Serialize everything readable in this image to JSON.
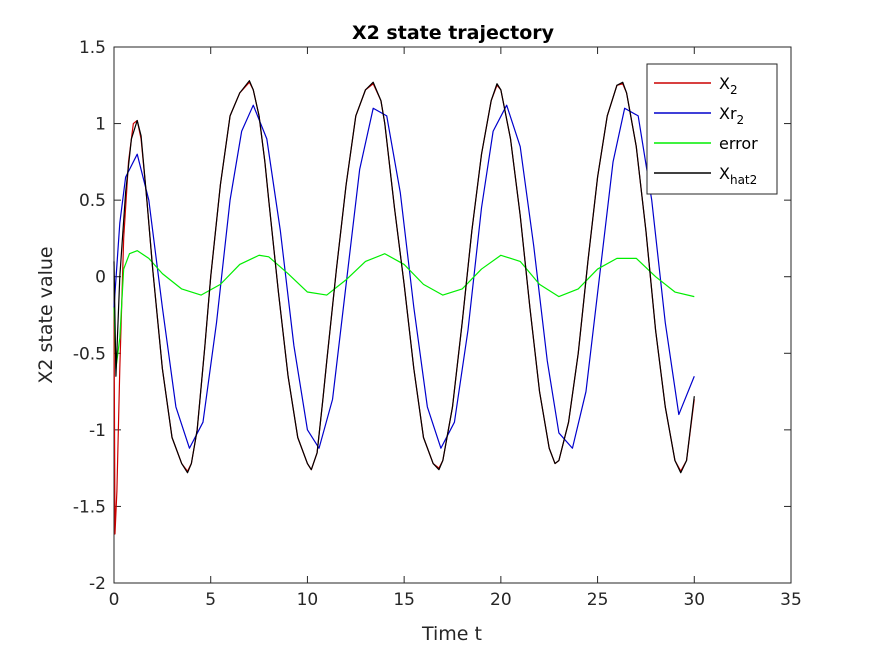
{
  "chart_data": {
    "type": "line",
    "title": "X2 state trajectory",
    "xlabel": "Time t",
    "ylabel": "X2 state value",
    "xlim": [
      0,
      35
    ],
    "ylim": [
      -2,
      1.5
    ],
    "xticks": [
      0,
      5,
      10,
      15,
      20,
      25,
      30,
      35
    ],
    "xtick_labels": [
      "0",
      "5",
      "10",
      "15",
      "20",
      "25",
      "30",
      "35"
    ],
    "yticks": [
      -2,
      -1.5,
      -1,
      -0.5,
      0,
      0.5,
      1,
      1.5
    ],
    "ytick_labels": [
      "-2",
      "-1.5",
      "-1",
      "-0.5",
      "0",
      "0.5",
      "1",
      "1.5"
    ],
    "grid": false,
    "legend_position": "top-right",
    "series": [
      {
        "name": "X_2",
        "legend_main": "X",
        "legend_sub": "2",
        "color": "#cc0000",
        "x": [
          0,
          0.05,
          0.15,
          0.3,
          0.5,
          0.75,
          1.0,
          1.2,
          1.4,
          1.7,
          2.0,
          2.5,
          3.0,
          3.5,
          3.8,
          4.0,
          4.3,
          4.7,
          5.0,
          5.5,
          6.0,
          6.5,
          7.0,
          7.2,
          7.5,
          7.8,
          8.0,
          8.5,
          9.0,
          9.5,
          10.0,
          10.2,
          10.5,
          10.8,
          11.0,
          11.5,
          12.0,
          12.5,
          13.0,
          13.4,
          13.8,
          14.0,
          14.5,
          15.0,
          15.5,
          16.0,
          16.5,
          16.8,
          17.0,
          17.5,
          18.0,
          18.5,
          19.0,
          19.5,
          19.8,
          20.0,
          20.5,
          21.0,
          21.5,
          22.0,
          22.5,
          22.8,
          23.0,
          23.5,
          24.0,
          24.5,
          25.0,
          25.5,
          26.0,
          26.3,
          26.5,
          27.0,
          27.5,
          28.0,
          28.5,
          29.0,
          29.3,
          29.6,
          30.0
        ],
        "y": [
          -0.2,
          -1.68,
          -1.4,
          -0.6,
          0.25,
          0.75,
          1.0,
          1.02,
          0.9,
          0.5,
          0.05,
          -0.6,
          -1.05,
          -1.22,
          -1.27,
          -1.22,
          -1.0,
          -0.45,
          0.0,
          0.6,
          1.05,
          1.2,
          1.27,
          1.22,
          1.05,
          0.75,
          0.5,
          -0.1,
          -0.65,
          -1.05,
          -1.22,
          -1.26,
          -1.15,
          -0.8,
          -0.55,
          0.05,
          0.6,
          1.05,
          1.22,
          1.26,
          1.15,
          1.0,
          0.45,
          -0.05,
          -0.6,
          -1.05,
          -1.22,
          -1.25,
          -1.2,
          -0.85,
          -0.3,
          0.3,
          0.8,
          1.15,
          1.25,
          1.22,
          0.9,
          0.4,
          -0.2,
          -0.75,
          -1.12,
          -1.22,
          -1.2,
          -0.95,
          -0.5,
          0.1,
          0.65,
          1.05,
          1.25,
          1.26,
          1.2,
          0.85,
          0.3,
          -0.35,
          -0.85,
          -1.2,
          -1.27,
          -1.2,
          -0.8
        ]
      },
      {
        "name": "Xr_2",
        "legend_main": "Xr",
        "legend_sub": "2",
        "color": "#0000cc",
        "x": [
          0,
          0.3,
          0.6,
          1.2,
          1.8,
          2.5,
          3.2,
          3.9,
          4.6,
          5.3,
          6.0,
          6.6,
          7.2,
          7.9,
          8.6,
          9.3,
          10.0,
          10.6,
          11.3,
          12.0,
          12.7,
          13.4,
          14.1,
          14.8,
          15.5,
          16.2,
          16.9,
          17.6,
          18.3,
          19.0,
          19.6,
          20.3,
          21.0,
          21.7,
          22.4,
          23.0,
          23.7,
          24.4,
          25.1,
          25.8,
          26.4,
          27.1,
          27.8,
          28.5,
          29.2,
          30.0
        ],
        "y": [
          -0.2,
          0.35,
          0.65,
          0.8,
          0.5,
          -0.2,
          -0.85,
          -1.12,
          -0.95,
          -0.3,
          0.5,
          0.95,
          1.12,
          0.9,
          0.3,
          -0.45,
          -1.0,
          -1.12,
          -0.8,
          -0.05,
          0.7,
          1.1,
          1.05,
          0.55,
          -0.2,
          -0.85,
          -1.12,
          -0.95,
          -0.35,
          0.45,
          0.95,
          1.12,
          0.85,
          0.2,
          -0.55,
          -1.02,
          -1.12,
          -0.75,
          0.0,
          0.75,
          1.1,
          1.05,
          0.5,
          -0.3,
          -0.9,
          -0.65
        ]
      },
      {
        "name": "error",
        "legend_main": "error",
        "legend_sub": "",
        "color": "#00ee00",
        "x": [
          0,
          0.1,
          0.3,
          0.5,
          0.8,
          1.2,
          1.8,
          2.5,
          3.5,
          4.5,
          5.5,
          6.5,
          7.5,
          8.0,
          9.0,
          10.0,
          11.0,
          12.0,
          13.0,
          14.0,
          15.0,
          16.0,
          17.0,
          18.0,
          19.0,
          20.0,
          21.0,
          22.0,
          23.0,
          24.0,
          25.0,
          26.0,
          27.0,
          28.0,
          29.0,
          30.0
        ],
        "y": [
          -0.2,
          -0.6,
          -0.4,
          0.05,
          0.15,
          0.17,
          0.12,
          0.02,
          -0.08,
          -0.12,
          -0.05,
          0.08,
          0.14,
          0.13,
          0.02,
          -0.1,
          -0.12,
          -0.02,
          0.1,
          0.15,
          0.08,
          -0.05,
          -0.12,
          -0.08,
          0.05,
          0.14,
          0.1,
          -0.05,
          -0.13,
          -0.08,
          0.05,
          0.12,
          0.12,
          0.0,
          -0.1,
          -0.13
        ]
      },
      {
        "name": "X_hat2",
        "legend_main": "X",
        "legend_sub": "hat2",
        "color": "#000000",
        "x": [
          0,
          0.1,
          0.3,
          0.6,
          0.9,
          1.2,
          1.4,
          1.7,
          2.0,
          2.5,
          3.0,
          3.5,
          3.8,
          4.0,
          4.3,
          4.7,
          5.0,
          5.5,
          6.0,
          6.5,
          7.0,
          7.2,
          7.5,
          7.8,
          8.0,
          8.5,
          9.0,
          9.5,
          10.0,
          10.2,
          10.5,
          10.8,
          11.0,
          11.5,
          12.0,
          12.5,
          13.0,
          13.4,
          13.8,
          14.0,
          14.5,
          15.0,
          15.5,
          16.0,
          16.5,
          16.8,
          17.0,
          17.5,
          18.0,
          18.5,
          19.0,
          19.5,
          19.8,
          20.0,
          20.5,
          21.0,
          21.5,
          22.0,
          22.5,
          22.8,
          23.0,
          23.5,
          24.0,
          24.5,
          25.0,
          25.5,
          26.0,
          26.3,
          26.5,
          27.0,
          27.5,
          28.0,
          28.5,
          29.0,
          29.3,
          29.6,
          30.0
        ],
        "y": [
          0.1,
          -0.65,
          0.0,
          0.55,
          0.9,
          1.02,
          0.92,
          0.5,
          0.05,
          -0.6,
          -1.05,
          -1.22,
          -1.28,
          -1.22,
          -1.0,
          -0.45,
          0.0,
          0.6,
          1.05,
          1.2,
          1.28,
          1.22,
          1.05,
          0.75,
          0.5,
          -0.1,
          -0.65,
          -1.05,
          -1.22,
          -1.26,
          -1.15,
          -0.8,
          -0.55,
          0.05,
          0.6,
          1.05,
          1.22,
          1.27,
          1.15,
          1.0,
          0.45,
          -0.05,
          -0.6,
          -1.05,
          -1.22,
          -1.26,
          -1.2,
          -0.85,
          -0.3,
          0.3,
          0.8,
          1.15,
          1.26,
          1.22,
          0.9,
          0.4,
          -0.2,
          -0.75,
          -1.12,
          -1.22,
          -1.2,
          -0.95,
          -0.5,
          0.1,
          0.65,
          1.05,
          1.25,
          1.27,
          1.2,
          0.85,
          0.3,
          -0.35,
          -0.85,
          -1.2,
          -1.28,
          -1.2,
          -0.78
        ]
      }
    ]
  }
}
